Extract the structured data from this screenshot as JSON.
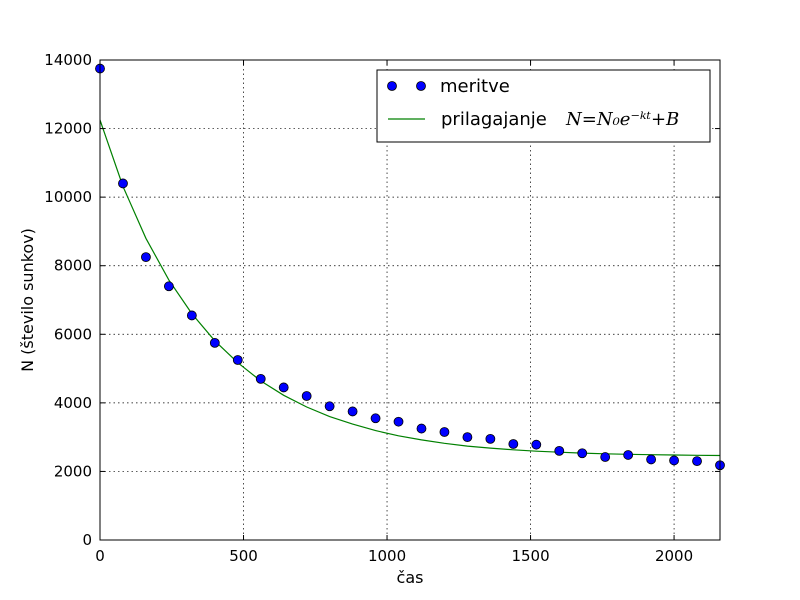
{
  "chart_data": {
    "type": "scatter",
    "xlabel": "čas",
    "ylabel": "N (število sunkov)",
    "xlim": [
      0,
      2160
    ],
    "ylim": [
      0,
      14000
    ],
    "x_ticks": [
      0,
      500,
      1000,
      1500,
      2000
    ],
    "y_ticks": [
      0,
      2000,
      4000,
      6000,
      8000,
      10000,
      12000,
      14000
    ],
    "grid": true,
    "legend_position": "top-right",
    "series": [
      {
        "name": "meritve",
        "kind": "scatter",
        "color": "#0000ff",
        "x": [
          0,
          80,
          160,
          240,
          320,
          400,
          480,
          560,
          640,
          720,
          800,
          880,
          960,
          1040,
          1120,
          1200,
          1280,
          1360,
          1440,
          1520,
          1600,
          1680,
          1760,
          1840,
          1920,
          2000,
          2080,
          2160
        ],
        "y": [
          13750,
          10400,
          8250,
          7400,
          6550,
          5750,
          5250,
          4700,
          4450,
          4200,
          3900,
          3750,
          3550,
          3450,
          3250,
          3150,
          3000,
          2950,
          2800,
          2780,
          2600,
          2530,
          2420,
          2480,
          2350,
          2320,
          2300,
          2180
        ]
      },
      {
        "name_prefix": "prilagajanje",
        "name_formula": "N=N₀e⁻ᵏᵗ+B",
        "kind": "line",
        "color": "#008000",
        "x": [
          0,
          80,
          160,
          240,
          320,
          400,
          480,
          560,
          640,
          720,
          800,
          880,
          960,
          1040,
          1120,
          1200,
          1280,
          1360,
          1440,
          1520,
          1600,
          1680,
          1760,
          1840,
          1920,
          2000,
          2080,
          2160
        ],
        "y": [
          12250,
          10310,
          8800,
          7580,
          6600,
          5810,
          5170,
          4640,
          4220,
          3880,
          3600,
          3380,
          3190,
          3040,
          2920,
          2820,
          2740,
          2680,
          2630,
          2590,
          2560,
          2535,
          2515,
          2500,
          2488,
          2478,
          2470,
          2464
        ]
      }
    ]
  }
}
